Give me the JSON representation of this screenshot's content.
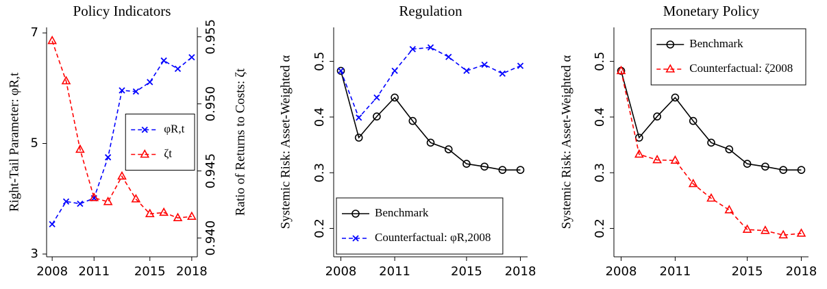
{
  "chart_data": [
    {
      "type": "line",
      "title": "Policy Indicators",
      "ylabel": "Right-Tail Parameter: φR,t",
      "y2label": "Ratio of Returns to Costs: ζt",
      "x": [
        2008,
        2009,
        2010,
        2011,
        2012,
        2013,
        2014,
        2015,
        2016,
        2017,
        2018
      ],
      "xlim": [
        2007.6,
        2018.4
      ],
      "xticks": [
        2008,
        2011,
        2015,
        2018
      ],
      "ylim": [
        2.95,
        7.1
      ],
      "yticks": [
        3,
        5,
        7
      ],
      "y2lim": [
        0.9386,
        0.9557
      ],
      "y2ticks": [
        {
          "value": 0.94,
          "label": "0.940"
        },
        {
          "value": 0.945,
          "label": "0.945"
        },
        {
          "value": 0.95,
          "label": "0.950"
        },
        {
          "value": 0.955,
          "label": "0.955"
        }
      ],
      "legend": "center right",
      "series": [
        {
          "name": "φR,t",
          "color": "#0000ff",
          "marker": "x",
          "line_style": "dashed",
          "values": [
            3.54,
            3.95,
            3.91,
            4.01,
            4.75,
            5.96,
            5.94,
            6.11,
            6.5,
            6.35,
            6.56
          ]
        },
        {
          "name": "ζt",
          "color": "#ff0000",
          "marker": "triangle",
          "line_style": "dashed",
          "axis": "y2",
          "values": [
            0.9547,
            0.9517,
            0.9466,
            0.943,
            0.9427,
            0.9446,
            0.9429,
            0.9418,
            0.9419,
            0.9415,
            0.9416
          ]
        }
      ]
    },
    {
      "type": "line",
      "title": "Regulation",
      "ylabel": "Systemic Risk: Asset-Weighted α",
      "x": [
        2008,
        2009,
        2010,
        2011,
        2012,
        2013,
        2014,
        2015,
        2016,
        2017,
        2018
      ],
      "xlim": [
        2007.6,
        2018.4
      ],
      "xticks": [
        2008,
        2011,
        2015,
        2018
      ],
      "ylim": [
        0.149,
        0.561
      ],
      "yticks": [
        0.2,
        0.3,
        0.4,
        0.5
      ],
      "legend": "lower left",
      "series": [
        {
          "name": "Benchmark",
          "color": "#000000",
          "marker": "circle",
          "line_style": "solid",
          "values": [
            0.483,
            0.363,
            0.401,
            0.435,
            0.393,
            0.354,
            0.342,
            0.316,
            0.311,
            0.305,
            0.305
          ]
        },
        {
          "name": "Counterfactual: φR,2008",
          "color": "#0000ff",
          "marker": "x",
          "line_style": "dashed",
          "values": [
            0.483,
            0.399,
            0.435,
            0.483,
            0.522,
            0.525,
            0.508,
            0.483,
            0.494,
            0.478,
            0.492
          ]
        }
      ]
    },
    {
      "type": "line",
      "title": "Monetary Policy",
      "ylabel": "Systemic Risk: Asset-Weighted α",
      "x": [
        2008,
        2009,
        2010,
        2011,
        2012,
        2013,
        2014,
        2015,
        2016,
        2017,
        2018
      ],
      "xlim": [
        2007.6,
        2018.4
      ],
      "xticks": [
        2008,
        2011,
        2015,
        2018
      ],
      "ylim": [
        0.149,
        0.561
      ],
      "yticks": [
        0.2,
        0.3,
        0.4,
        0.5
      ],
      "legend": "upper right",
      "series": [
        {
          "name": "Benchmark",
          "color": "#000000",
          "marker": "circle",
          "line_style": "solid",
          "values": [
            0.483,
            0.363,
            0.401,
            0.435,
            0.393,
            0.354,
            0.342,
            0.316,
            0.311,
            0.305,
            0.305
          ]
        },
        {
          "name": "Counterfactual: ζ2008",
          "color": "#ff0000",
          "marker": "triangle",
          "line_style": "dashed",
          "values": [
            0.483,
            0.333,
            0.323,
            0.322,
            0.28,
            0.254,
            0.233,
            0.198,
            0.196,
            0.188,
            0.191
          ]
        }
      ]
    }
  ]
}
